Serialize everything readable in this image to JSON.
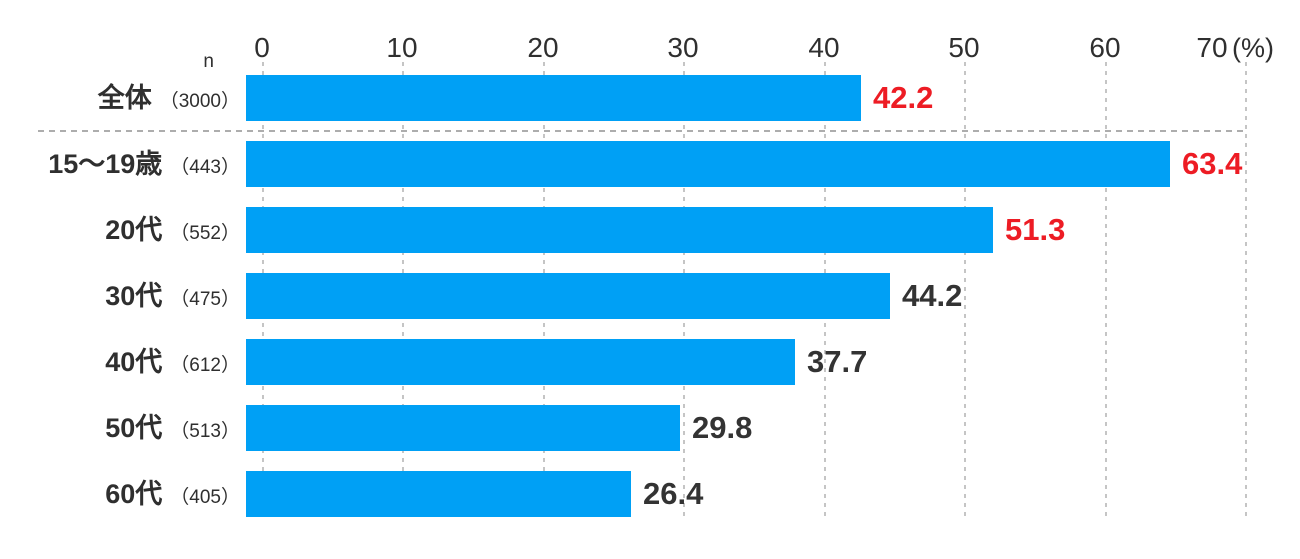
{
  "chart_data": {
    "type": "bar",
    "orientation": "horizontal",
    "title": "",
    "unit_label": "(%)",
    "n_header": "n",
    "axis": {
      "min": 0,
      "max": 70,
      "ticks": [
        0,
        10,
        20,
        30,
        40,
        50,
        60,
        70
      ],
      "grid": "dashed-vertical"
    },
    "categories": [
      "全体",
      "15～19歳",
      "20代",
      "30代",
      "40代",
      "50代",
      "60代"
    ],
    "n_labels": [
      "（3000）",
      "（443）",
      "（552）",
      "（475）",
      "（612）",
      "（513）",
      "（405）"
    ],
    "values": [
      42.2,
      63.4,
      51.3,
      44.2,
      37.7,
      29.8,
      26.4
    ],
    "value_highlighted": [
      true,
      true,
      true,
      false,
      false,
      false,
      false
    ],
    "separator_after_first_row": true,
    "colors": {
      "bar": "#00A0F5",
      "value_highlight": "#ED1C24",
      "value_normal": "#333333",
      "text": "#2F2F2F",
      "gridline": "#C5C5C5",
      "separator": "#ADADAD"
    }
  }
}
